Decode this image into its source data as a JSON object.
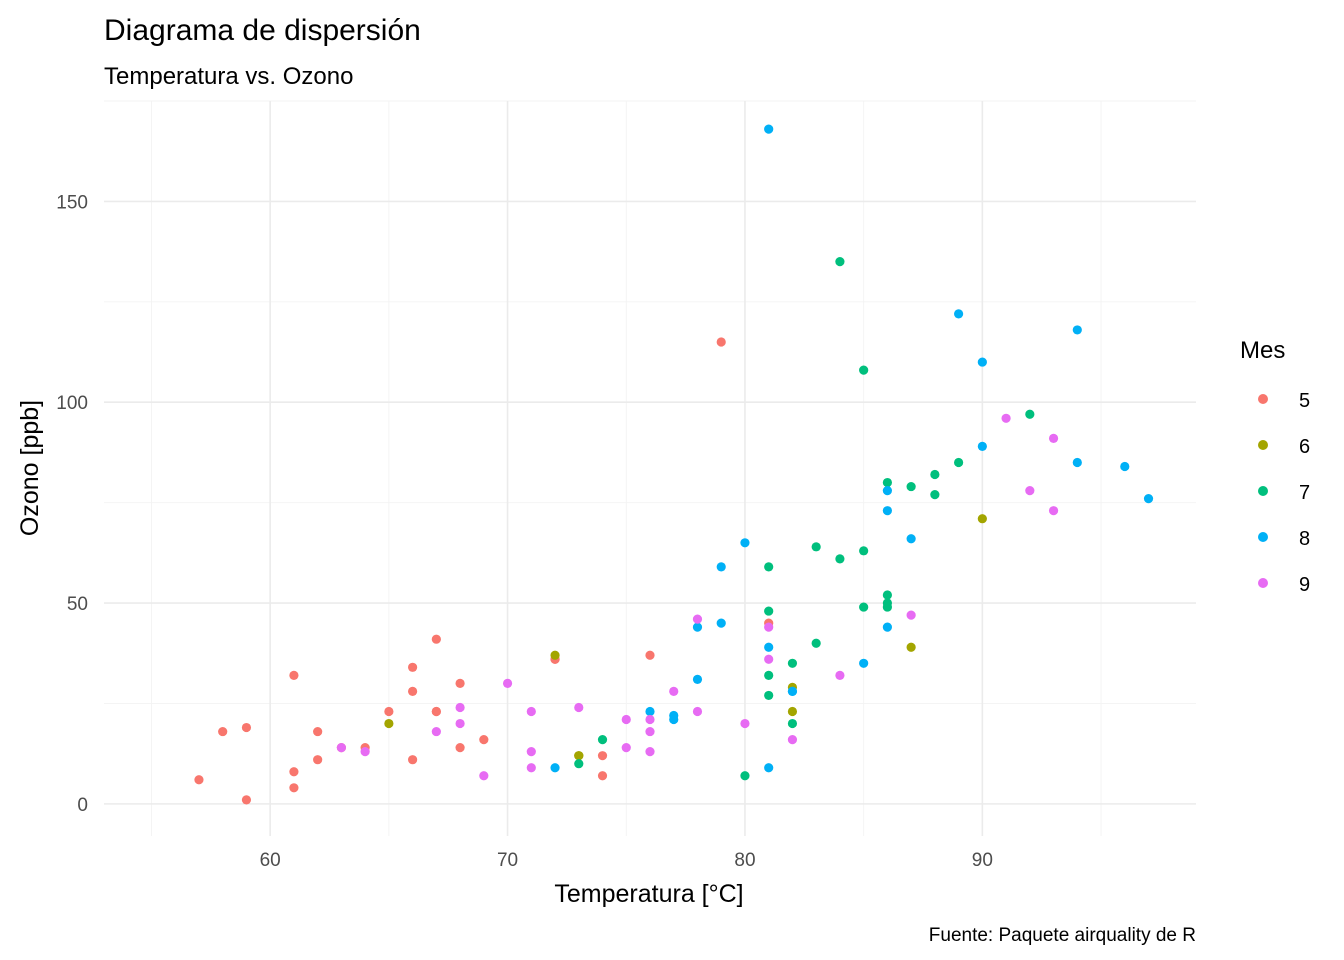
{
  "chart_data": {
    "type": "scatter",
    "title": "Diagrama de dispersión",
    "subtitle": "Temperatura vs. Ozono",
    "xlabel": "Temperatura [°C]",
    "ylabel": "Ozono [ppb]",
    "caption": "Fuente: Paquete airquality de R",
    "xlim": [
      53,
      99
    ],
    "ylim": [
      -8,
      175
    ],
    "x_ticks": [
      60,
      70,
      80,
      90
    ],
    "y_ticks": [
      0,
      50,
      100,
      150
    ],
    "x_tick_labels": [
      "60",
      "70",
      "80",
      "90"
    ],
    "y_tick_labels": [
      "0",
      "50",
      "100",
      "150"
    ],
    "grid": true,
    "legend": {
      "title": "Mes",
      "position": "right"
    },
    "series": [
      {
        "name": "5",
        "color": "#F8766D",
        "points": [
          [
            67,
            41
          ],
          [
            72,
            36
          ],
          [
            74,
            12
          ],
          [
            62,
            18
          ],
          [
            57,
            6
          ],
          [
            58,
            18
          ],
          [
            59,
            19
          ],
          [
            61,
            32
          ],
          [
            64,
            14
          ],
          [
            66,
            34
          ],
          [
            68,
            30
          ],
          [
            62,
            11
          ],
          [
            59,
            1
          ],
          [
            61,
            4
          ],
          [
            61,
            8
          ],
          [
            67,
            23
          ],
          [
            79,
            115
          ],
          [
            76,
            37
          ],
          [
            65,
            23
          ],
          [
            66,
            11
          ],
          [
            81,
            45
          ],
          [
            74,
            7
          ],
          [
            66,
            28
          ],
          [
            68,
            14
          ],
          [
            69,
            16
          ],
          [
            67,
            23
          ],
          [
            63,
            14
          ],
          [
            72,
            36
          ]
        ]
      },
      {
        "name": "6",
        "color": "#A3A500",
        "points": [
          [
            72,
            37
          ],
          [
            73,
            12
          ],
          [
            65,
            20
          ],
          [
            82,
            29
          ],
          [
            82,
            23
          ],
          [
            87,
            39
          ],
          [
            90,
            71
          ],
          [
            73,
            12
          ]
        ]
      },
      {
        "name": "7",
        "color": "#00BF7D",
        "points": [
          [
            83,
            40
          ],
          [
            86,
            80
          ],
          [
            85,
            108
          ],
          [
            81,
            48
          ],
          [
            84,
            135
          ],
          [
            83,
            64
          ],
          [
            92,
            97
          ],
          [
            86,
            52
          ],
          [
            82,
            35
          ],
          [
            81,
            59
          ],
          [
            86,
            49
          ],
          [
            85,
            63
          ],
          [
            88,
            82
          ],
          [
            86,
            50
          ],
          [
            87,
            79
          ],
          [
            88,
            77
          ],
          [
            89,
            85
          ],
          [
            80,
            7
          ],
          [
            74,
            16
          ],
          [
            73,
            10
          ],
          [
            81,
            27
          ],
          [
            82,
            20
          ],
          [
            81,
            32
          ],
          [
            84,
            61
          ],
          [
            85,
            49
          ]
        ]
      },
      {
        "name": "8",
        "color": "#00B0F6",
        "points": [
          [
            81,
            39
          ],
          [
            81,
            9
          ],
          [
            82,
            28
          ],
          [
            86,
            44
          ],
          [
            85,
            35
          ],
          [
            81,
            168
          ],
          [
            86,
            73
          ],
          [
            90,
            110
          ],
          [
            89,
            122
          ],
          [
            94,
            118
          ],
          [
            97,
            76
          ],
          [
            96,
            84
          ],
          [
            94,
            85
          ],
          [
            90,
            89
          ],
          [
            87,
            66
          ],
          [
            86,
            78
          ],
          [
            80,
            65
          ],
          [
            79,
            59
          ],
          [
            77,
            22
          ],
          [
            76,
            23
          ],
          [
            78,
            31
          ],
          [
            79,
            45
          ],
          [
            77,
            21
          ],
          [
            78,
            44
          ],
          [
            72,
            9
          ],
          [
            82,
            28
          ]
        ]
      },
      {
        "name": "9",
        "color": "#E76BF3",
        "points": [
          [
            91,
            96
          ],
          [
            92,
            78
          ],
          [
            93,
            73
          ],
          [
            93,
            91
          ],
          [
            87,
            47
          ],
          [
            84,
            32
          ],
          [
            80,
            20
          ],
          [
            78,
            23
          ],
          [
            75,
            21
          ],
          [
            73,
            24
          ],
          [
            81,
            44
          ],
          [
            76,
            21
          ],
          [
            77,
            28
          ],
          [
            71,
            9
          ],
          [
            71,
            13
          ],
          [
            78,
            46
          ],
          [
            67,
            18
          ],
          [
            76,
            13
          ],
          [
            68,
            24
          ],
          [
            82,
            16
          ],
          [
            64,
            13
          ],
          [
            71,
            23
          ],
          [
            81,
            36
          ],
          [
            69,
            7
          ],
          [
            63,
            14
          ],
          [
            70,
            30
          ],
          [
            75,
            14
          ],
          [
            76,
            18
          ],
          [
            68,
            20
          ]
        ]
      }
    ]
  }
}
